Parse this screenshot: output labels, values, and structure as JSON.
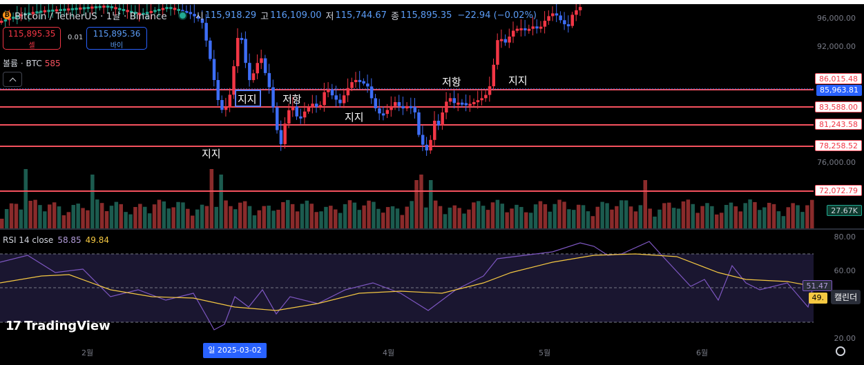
{
  "header": {
    "title": "Bitcoin / TetherUS · 1날 · Binance",
    "open_label": "시",
    "open": "115,918.29",
    "high_label": "고",
    "high": "116,109.00",
    "low_label": "저",
    "low": "115,744.67",
    "close_label": "종",
    "close": "115,895.35",
    "change": "−22.94 (−0.02%)"
  },
  "trade": {
    "sell_price": "115,895.35",
    "sell_label": "셀",
    "spread": "0.01",
    "buy_price": "115,895.36",
    "buy_label": "바이"
  },
  "volume_legend": {
    "label": "볼륨 · BTC",
    "value": "585"
  },
  "rsi_legend": {
    "label": "RSI 14 close",
    "rsi": "58.85",
    "ma": "49.84"
  },
  "price_axis": [
    "96,000.00",
    "92,000.00",
    "76,000.00"
  ],
  "rsi_axis": [
    "80.00",
    "60.00",
    "20.00"
  ],
  "level_tags": [
    {
      "label": "86,015.48",
      "style": "red"
    },
    {
      "label": "85,963.81",
      "style": "blue"
    },
    {
      "label": "83,588.00",
      "style": "red"
    },
    {
      "label": "81,243.58",
      "style": "red"
    },
    {
      "label": "78,258.52",
      "style": "red"
    },
    {
      "label": "72,072.79",
      "style": "red"
    }
  ],
  "volume_tag": "27.67K",
  "rsi_tags": {
    "rsi": "51.47",
    "ma": "49."
  },
  "annotations": [
    "지지",
    "지지",
    "저항",
    "지지",
    "저항",
    "지지"
  ],
  "x_axis": [
    "2월",
    "4월",
    "5월",
    "6월"
  ],
  "date_badge": "일 2025-03-02",
  "calendar_label": "캘린더",
  "brand": "TradingView",
  "colors": {
    "up": "#22ab94",
    "down": "#f23645",
    "level": "#f7525f",
    "rsi": "#7e57c2",
    "rsi_ma": "#f5c842"
  }
}
